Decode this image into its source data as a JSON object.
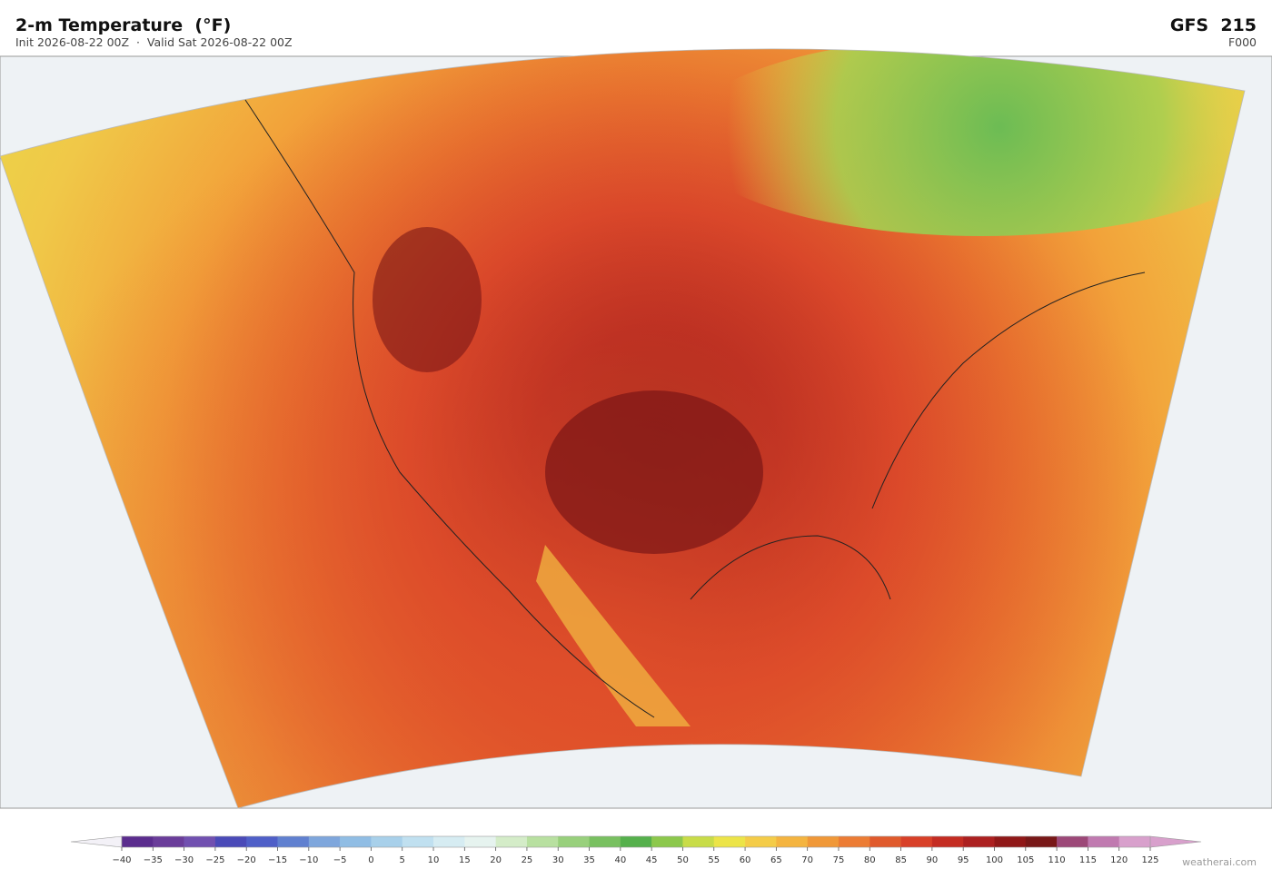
{
  "header": {
    "title": "2-m Temperature  (°F)",
    "subtitle": "Init 2026-08-22 00Z  ·  Valid Sat 2026-08-22 00Z",
    "model": "GFS  215",
    "forecast_hour": "F000"
  },
  "colorbar": {
    "ticks": [
      {
        "value": -40,
        "label": "−40"
      },
      {
        "value": -35,
        "label": "−35"
      },
      {
        "value": -30,
        "label": "−30"
      },
      {
        "value": -25,
        "label": "−25"
      },
      {
        "value": -20,
        "label": "−20"
      },
      {
        "value": -15,
        "label": "−15"
      },
      {
        "value": -10,
        "label": "−10"
      },
      {
        "value": -5,
        "label": "−5"
      },
      0,
      5,
      10,
      15,
      20,
      25,
      30,
      35,
      40,
      45,
      50,
      55,
      60,
      65,
      70,
      75,
      80,
      85,
      90,
      95,
      100,
      105,
      110,
      115,
      120,
      125
    ],
    "colors": [
      "#5b2d8e",
      "#6a3d9a",
      "#7150b0",
      "#4a4ab8",
      "#4f5fc8",
      "#6080d0",
      "#7ea6dc",
      "#90bde4",
      "#a8d0ea",
      "#c0e0f0",
      "#d6ecf2",
      "#e6f3ef",
      "#d4ecc8",
      "#b8e0a0",
      "#98d07c",
      "#78c060",
      "#55b04c",
      "#8cc84c",
      "#c8dc48",
      "#ece448",
      "#f4cc48",
      "#f4b440",
      "#f09838",
      "#ec7c34",
      "#e05a2c",
      "#d84028",
      "#c42c22",
      "#ac2020",
      "#901818",
      "#781818",
      "#9c4878",
      "#c07ab0",
      "#d8a0cc"
    ]
  },
  "footer": {
    "watermark": "weatherai.com"
  }
}
